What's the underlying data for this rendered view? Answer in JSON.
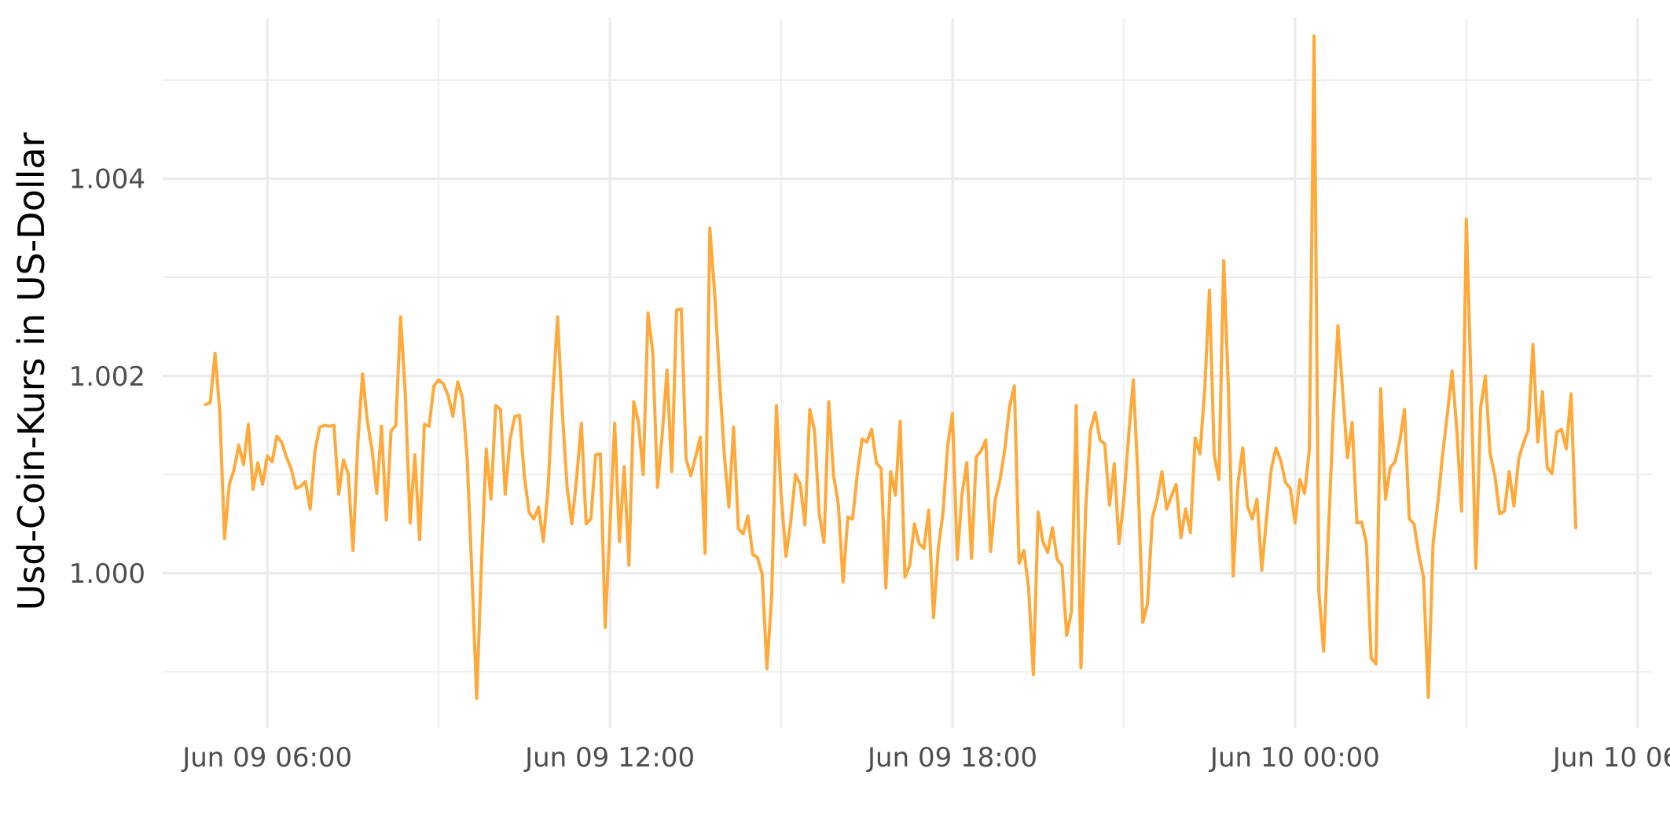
{
  "chart_data": {
    "type": "line",
    "title": "",
    "xlabel": "",
    "ylabel": "Usd-Coin-Kurs in US-Dollar",
    "x_range": [
      "2021-06-09T04:10",
      "2021-06-10T06:15"
    ],
    "ylim": [
      0.99843,
      1.00563
    ],
    "x_ticks": [
      {
        "value": "2021-06-09T06:00",
        "label": "Jun 09 06:00"
      },
      {
        "value": "2021-06-09T12:00",
        "label": "Jun 09 12:00"
      },
      {
        "value": "2021-06-09T18:00",
        "label": "Jun 09 18:00"
      },
      {
        "value": "2021-06-10T00:00",
        "label": "Jun 10 00:00"
      },
      {
        "value": "2021-06-10T06:00",
        "label": "Jun 10 06:00"
      }
    ],
    "y_ticks": [
      {
        "value": 1.0,
        "label": "1.000"
      },
      {
        "value": 1.002,
        "label": "1.002"
      },
      {
        "value": 1.004,
        "label": "1.004"
      }
    ],
    "minor_x_ticks": [
      "2021-06-09T09:00",
      "2021-06-09T15:00",
      "2021-06-09T21:00",
      "2021-06-10T03:00"
    ],
    "minor_y_ticks": [
      0.999,
      1.001,
      1.003,
      1.005
    ],
    "grid": true,
    "legend": "none",
    "series_color": "#FFA93A",
    "x_start": "2021-06-09T04:55",
    "x_step_minutes": 5,
    "values": [
      1.00171,
      1.00173,
      1.00223,
      1.00164,
      1.00035,
      1.0009,
      1.00105,
      1.0013,
      1.0011,
      1.00151,
      1.00085,
      1.00112,
      1.0009,
      1.00119,
      1.00113,
      1.00139,
      1.00133,
      1.00118,
      1.00106,
      1.00086,
      1.00088,
      1.00093,
      1.00065,
      1.00124,
      1.00148,
      1.0015,
      1.00149,
      1.0015,
      1.0008,
      1.00115,
      1.00101,
      1.00023,
      1.00131,
      1.00202,
      1.00155,
      1.00125,
      1.00081,
      1.00149,
      1.00054,
      1.00144,
      1.0015,
      1.0026,
      1.00181,
      1.00051,
      1.0012,
      1.00034,
      1.00151,
      1.00149,
      1.0019,
      1.00196,
      1.00192,
      1.0018,
      1.00159,
      1.00194,
      1.00178,
      1.00116,
      0.99999,
      0.99873,
      1.0001,
      1.00126,
      1.00075,
      1.0017,
      1.00166,
      1.0008,
      1.00135,
      1.00159,
      1.0016,
      1.00099,
      1.00062,
      1.00055,
      1.00067,
      1.00032,
      1.00086,
      1.00182,
      1.0026,
      1.00163,
      1.00087,
      1.0005,
      1.00096,
      1.00152,
      1.0005,
      1.00055,
      1.0012,
      1.00121,
      0.99945,
      1.00047,
      1.00152,
      1.00032,
      1.00108,
      1.00008,
      1.00174,
      1.00153,
      1.001,
      1.00264,
      1.00224,
      1.00087,
      1.00141,
      1.00206,
      1.00103,
      1.00267,
      1.00268,
      1.00116,
      1.00099,
      1.00118,
      1.00138,
      1.0002,
      1.0035,
      1.00285,
      1.002,
      1.00123,
      1.00067,
      1.00148,
      1.00045,
      1.0004,
      1.00058,
      1.00019,
      1.00016,
      0.99999,
      0.99903,
      0.99977,
      1.0017,
      1.00079,
      1.00017,
      1.00052,
      1.001,
      1.0009,
      1.00049,
      1.00166,
      1.00145,
      1.0006,
      1.00031,
      1.00174,
      1.00099,
      1.0007,
      0.99991,
      1.00057,
      1.00055,
      1.00101,
      1.00136,
      1.00133,
      1.00146,
      1.00112,
      1.00106,
      0.99985,
      1.00103,
      1.00079,
      1.00154,
      0.99996,
      1.00008,
      1.0005,
      1.0003,
      1.00025,
      1.00064,
      0.99955,
      1.00025,
      1.00061,
      1.0013,
      1.00162,
      1.00014,
      1.0008,
      1.00112,
      1.00015,
      1.00118,
      1.00124,
      1.00135,
      1.00022,
      1.00075,
      1.00095,
      1.00126,
      1.00169,
      1.0019,
      1.0001,
      1.00023,
      0.99985,
      0.99897,
      1.00062,
      1.00032,
      1.00021,
      1.00046,
      1.00014,
      1.00008,
      0.99937,
      0.99961,
      1.0017,
      0.99904,
      1.00066,
      1.00145,
      1.00163,
      1.00135,
      1.00131,
      1.00069,
      1.00111,
      1.0003,
      1.00074,
      1.00138,
      1.00196,
      1.00094,
      0.9995,
      0.99969,
      1.00056,
      1.00075,
      1.00103,
      1.00065,
      1.00078,
      1.0009,
      1.00036,
      1.00065,
      1.00041,
      1.00137,
      1.00121,
      1.00185,
      1.00287,
      1.0012,
      1.00095,
      1.00317,
      1.00185,
      0.99997,
      1.00091,
      1.00127,
      1.00068,
      1.00055,
      1.00075,
      1.00003,
      1.00056,
      1.00106,
      1.00127,
      1.00114,
      1.00092,
      1.00086,
      1.00051,
      1.00095,
      1.00081,
      1.00125,
      1.00545,
      0.99981,
      0.99921,
      1.0004,
      1.00156,
      1.00251,
      1.00185,
      1.00117,
      1.00153,
      1.00051,
      1.00052,
      1.0003,
      0.99914,
      0.99908,
      1.00187,
      1.00075,
      1.00107,
      1.00113,
      1.00134,
      1.00166,
      1.00055,
      1.0005,
      1.00019,
      0.99996,
      0.99874,
      1.0003,
      1.00071,
      1.0012,
      1.00161,
      1.00205,
      1.00145,
      1.00063,
      1.00359,
      1.00189,
      1.00005,
      1.00168,
      1.002,
      1.00121,
      1.00099,
      1.0006,
      1.00063,
      1.00103,
      1.00068,
      1.00116,
      1.00132,
      1.00145,
      1.00232,
      1.00133,
      1.00184,
      1.00107,
      1.00101,
      1.00143,
      1.00146,
      1.00126,
      1.00182,
      1.00046
    ]
  }
}
